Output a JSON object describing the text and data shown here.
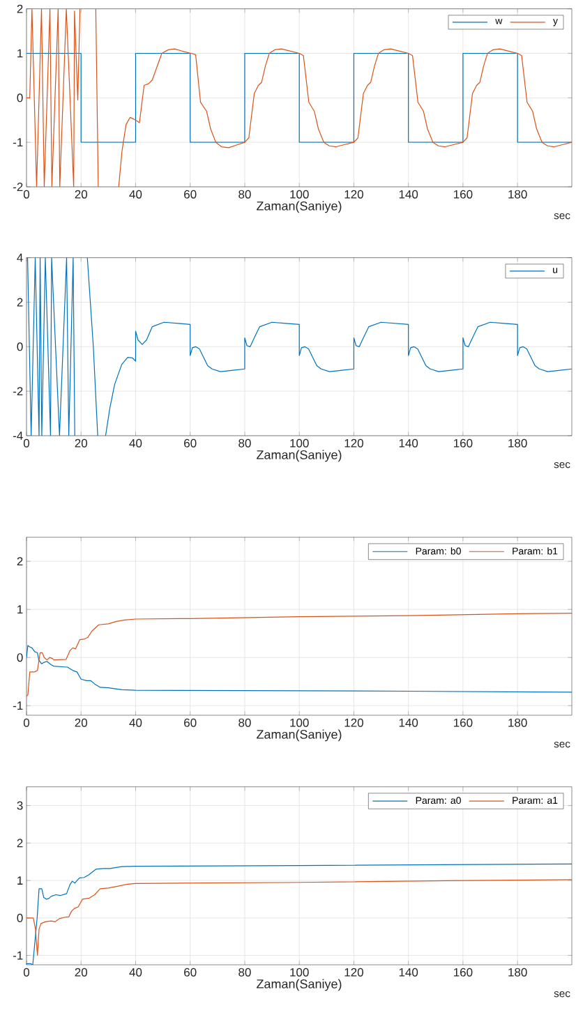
{
  "chart_data": [
    {
      "type": "line",
      "xlabel": "Zaman(Saniye)",
      "annotations": [
        "sec"
      ],
      "xlim": [
        0,
        199.9
      ],
      "ylim": [
        -2,
        2
      ],
      "xticks": [
        0,
        20,
        40,
        60,
        80,
        100,
        120,
        140,
        160,
        180
      ],
      "yticks": [
        -2,
        -1,
        0,
        1,
        2
      ],
      "grid": true,
      "legend": "top right",
      "series": [
        {
          "name": "w",
          "type": "step",
          "color": "#0072bd",
          "x": [
            0,
            20,
            40,
            60,
            80,
            100,
            120,
            140,
            160,
            180,
            199.9
          ],
          "values": [
            1,
            -1,
            1,
            -1,
            1,
            -1,
            1,
            -1,
            1,
            -1,
            -1
          ]
        },
        {
          "name": "y",
          "color": "#d95319",
          "x": [
            0,
            1.2,
            2,
            3.7,
            5.5,
            6.5,
            8.6,
            9.3,
            11.6,
            12.2,
            14.6,
            17.3,
            17.6,
            18.8,
            19.6,
            22,
            25.4,
            26.3,
            30,
            33.8,
            35,
            36.5,
            38,
            40,
            41.4,
            43.1,
            44.8,
            46.1,
            49.6,
            52,
            54.3,
            57,
            60.3,
            62,
            63.8,
            66,
            67.5,
            69.4,
            71.5,
            74.1,
            77,
            80,
            81.5,
            83.5,
            85,
            86.2,
            87.5,
            89,
            91,
            93.5,
            96,
            100,
            101.5,
            103.5,
            105.5,
            107,
            109,
            111,
            113.5,
            116,
            120,
            121.5,
            123.5,
            125,
            126.2,
            127.5,
            129,
            131,
            133.5,
            136,
            140,
            141.5,
            143.5,
            145.5,
            147,
            149,
            151,
            153.5,
            156,
            160,
            161.5,
            163.5,
            165,
            166.2,
            167.5,
            169,
            171,
            173.5,
            176,
            180,
            181.5,
            183.5,
            185.5,
            187,
            189,
            191,
            193.5,
            196,
            199.9
          ],
          "values": [
            0,
            0,
            2,
            -2,
            2,
            -2,
            2,
            -2,
            2,
            -2,
            2,
            -2,
            1.95,
            -0.05,
            2,
            null,
            2,
            -2,
            null,
            -2,
            -1.2,
            -0.6,
            -0.44,
            -0.5,
            -0.56,
            0.28,
            0.32,
            0.4,
            1.0,
            1.08,
            1.1,
            1.05,
            1.0,
            0.97,
            -0.1,
            -0.3,
            -0.7,
            -1.0,
            -1.1,
            -1.12,
            -1.06,
            -1.0,
            -0.9,
            0.1,
            0.28,
            0.35,
            0.7,
            1.0,
            1.08,
            1.1,
            1.06,
            1.0,
            0.95,
            -0.1,
            -0.3,
            -0.7,
            -1.0,
            -1.08,
            -1.1,
            -1.06,
            -1.0,
            -0.9,
            0.1,
            0.28,
            0.35,
            0.7,
            1.0,
            1.08,
            1.1,
            1.06,
            1.0,
            0.95,
            -0.1,
            -0.3,
            -0.7,
            -1.0,
            -1.08,
            -1.1,
            -1.06,
            -1.0,
            -0.9,
            0.1,
            0.28,
            0.35,
            0.7,
            1.0,
            1.08,
            1.1,
            1.06,
            1.0,
            0.95,
            -0.1,
            -0.3,
            -0.7,
            -1.0,
            -1.08,
            -1.1,
            -1.06,
            -1.0
          ]
        }
      ]
    },
    {
      "type": "line",
      "xlabel": "Zaman(Saniye)",
      "annotations": [
        "sec"
      ],
      "xlim": [
        0,
        199.9
      ],
      "ylim": [
        -4,
        4
      ],
      "xticks": [
        0,
        20,
        40,
        60,
        80,
        100,
        120,
        140,
        160,
        180
      ],
      "yticks": [
        -4,
        -2,
        0,
        2,
        4
      ],
      "grid": true,
      "legend": "top right",
      "series": [
        {
          "name": "u",
          "color": "#0072bd",
          "x": [
            0.4,
            1.7,
            3.2,
            4.6,
            5.0,
            5.6,
            6.9,
            8.8,
            9.2,
            12.1,
            14.7,
            15.5,
            17.1,
            17.7,
            20,
            22.3,
            24.5,
            26.1,
            27.5,
            29,
            30.5,
            32.3,
            34.9,
            37.1,
            38.8,
            40,
            40,
            40.9,
            42.4,
            44,
            46.1,
            50.4,
            55.6,
            60,
            60,
            60.8,
            62,
            63.4,
            65,
            66.4,
            68,
            71.1,
            76.3,
            80,
            80,
            80.8,
            82,
            83.5,
            85.5,
            90,
            95,
            100,
            100,
            100.8,
            102,
            103.4,
            105,
            106.4,
            108,
            111.1,
            116.3,
            120,
            120,
            120.8,
            122,
            123.5,
            125.5,
            130,
            135,
            140,
            140,
            140.8,
            142,
            143.4,
            145,
            146.4,
            148,
            151.1,
            156.3,
            160,
            160,
            160.8,
            162,
            163.5,
            165.5,
            170,
            175,
            180,
            180,
            180.8,
            182,
            183.4,
            185,
            186.4,
            188,
            191.1,
            196.3,
            199.9
          ],
          "values": [
            4,
            -4,
            4,
            -4,
            4,
            -4,
            4,
            -4,
            4,
            -4,
            4,
            -4,
            4,
            -4,
            null,
            4,
            0,
            -4,
            null,
            -4,
            -2.8,
            -1.7,
            -0.8,
            -0.48,
            -0.5,
            -0.65,
            0.7,
            0.3,
            0.1,
            0.3,
            0.9,
            1.1,
            1.05,
            1.0,
            -0.4,
            -0.05,
            0.0,
            -0.1,
            -0.5,
            -0.85,
            -1.0,
            -1.12,
            -1.05,
            -1.0,
            0.4,
            0.05,
            0.0,
            0.4,
            0.9,
            1.1,
            1.05,
            1.0,
            -0.4,
            -0.05,
            0.0,
            -0.1,
            -0.5,
            -0.85,
            -1.0,
            -1.12,
            -1.05,
            -1.0,
            0.4,
            0.05,
            0.0,
            0.4,
            0.9,
            1.1,
            1.05,
            1.0,
            -0.4,
            -0.05,
            0.0,
            -0.1,
            -0.5,
            -0.85,
            -1.0,
            -1.12,
            -1.05,
            -1.0,
            0.4,
            0.05,
            0.0,
            0.4,
            0.9,
            1.1,
            1.05,
            1.0,
            -0.4,
            -0.05,
            0.0,
            -0.1,
            -0.5,
            -0.85,
            -1.0,
            -1.12,
            -1.05,
            -1.0
          ]
        }
      ]
    },
    {
      "type": "line",
      "xlabel": "Zaman(Saniye)",
      "annotations": [
        "sec"
      ],
      "xlim": [
        0,
        199.9
      ],
      "ylim": [
        -1.2,
        2.5
      ],
      "xticks": [
        0,
        20,
        40,
        60,
        80,
        100,
        120,
        140,
        160,
        180
      ],
      "yticks": [
        -1,
        0,
        1,
        2
      ],
      "grid": true,
      "legend": "top right",
      "series": [
        {
          "name": "Param: b0",
          "color": "#0072bd",
          "x": [
            0,
            0.5,
            1.2,
            2,
            3,
            4,
            4.5,
            5.5,
            6.5,
            7.5,
            9,
            10,
            15,
            17,
            18.5,
            20,
            22,
            23.5,
            25,
            27,
            30,
            35,
            40,
            100,
            140,
            199.9
          ],
          "values": [
            0,
            0.25,
            0.22,
            0.2,
            0.12,
            0.1,
            -0.05,
            -0.13,
            -0.1,
            -0.08,
            -0.15,
            -0.18,
            -0.2,
            -0.27,
            -0.3,
            -0.45,
            -0.48,
            -0.48,
            -0.55,
            -0.62,
            -0.63,
            -0.67,
            -0.68,
            -0.69,
            -0.7,
            -0.72
          ]
        },
        {
          "name": "Param: b1",
          "color": "#d95319",
          "x": [
            0,
            0.5,
            1.2,
            3,
            4,
            5,
            5.8,
            6.5,
            7.5,
            8.5,
            9.5,
            10,
            14.5,
            16,
            17,
            18,
            19.5,
            21,
            22.5,
            24,
            26.5,
            30,
            33,
            36,
            40,
            60,
            80,
            100,
            120,
            140,
            160,
            180,
            199.9
          ],
          "values": [
            -0.8,
            -0.78,
            -0.3,
            -0.3,
            -0.27,
            0.1,
            0.1,
            0.0,
            -0.05,
            0.0,
            -0.02,
            -0.05,
            -0.04,
            0.15,
            0.2,
            0.18,
            0.37,
            0.38,
            0.42,
            0.55,
            0.68,
            0.7,
            0.75,
            0.78,
            0.8,
            0.81,
            0.83,
            0.85,
            0.86,
            0.87,
            0.89,
            0.91,
            0.92
          ]
        }
      ]
    },
    {
      "type": "line",
      "xlabel": "Zaman(Saniye)",
      "annotations": [
        "sec"
      ],
      "xlim": [
        0,
        199.9
      ],
      "ylim": [
        -1.25,
        3.5
      ],
      "xticks": [
        0,
        20,
        40,
        60,
        80,
        100,
        120,
        140,
        160,
        180
      ],
      "yticks": [
        -1,
        0,
        1,
        2,
        3
      ],
      "grid": true,
      "legend": "top right",
      "series": [
        {
          "name": "Param: a0",
          "color": "#0072bd",
          "x": [
            0,
            1.5,
            2.3,
            3.9,
            4.6,
            5.6,
            6.3,
            7.3,
            8.2,
            9.1,
            10.8,
            12.5,
            14.7,
            16,
            16.8,
            17.7,
            19.4,
            21.1,
            22.8,
            25.4,
            28,
            30.6,
            34.9,
            40,
            100,
            199.9
          ],
          "values": [
            -1.22,
            -1.22,
            -1.25,
            0.0,
            0.78,
            0.78,
            0.55,
            0.5,
            0.52,
            0.58,
            0.62,
            0.6,
            0.65,
            0.9,
            0.98,
            0.93,
            1.07,
            1.08,
            1.15,
            1.3,
            1.32,
            1.32,
            1.37,
            1.38,
            1.4,
            1.44
          ]
        },
        {
          "name": "Param: a1",
          "color": "#d95319",
          "x": [
            0,
            2.5,
            3.3,
            4.0,
            4.6,
            5.3,
            7,
            9,
            10.5,
            12,
            14,
            15.5,
            16.5,
            17.5,
            19,
            20.5,
            23,
            25,
            27,
            30,
            33,
            37,
            40,
            100,
            160,
            199.9
          ],
          "values": [
            0,
            0,
            -0.3,
            -1.0,
            -0.3,
            -0.15,
            -0.1,
            -0.08,
            -0.1,
            -0.02,
            0.02,
            0.03,
            0.18,
            0.25,
            0.3,
            0.5,
            0.53,
            0.62,
            0.78,
            0.8,
            0.84,
            0.9,
            0.92,
            0.95,
            1.0,
            1.02
          ]
        }
      ]
    }
  ]
}
